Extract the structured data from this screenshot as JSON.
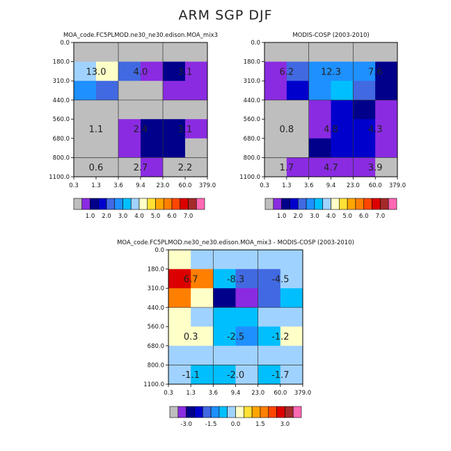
{
  "title": "ARM SGP DJF",
  "chart_data": [
    {
      "type": "heatmap",
      "title": "MOA_code.FC5PLMOD.ne30_ne30.edison.MOA_mix3",
      "xticks": [
        "0.3",
        "1.3",
        "3.6",
        "9.4",
        "23.0",
        "60.0",
        "379.0"
      ],
      "yticks": [
        "0.0",
        "180.0",
        "310.0",
        "440.0",
        "560.0",
        "680.0",
        "800.0",
        "1100.0"
      ],
      "colors": [
        [
          "#bebebe",
          "#bebebe",
          "#bebebe",
          "#bebebe",
          "#bebebe",
          "#bebebe"
        ],
        [
          "#a0d2ff",
          "#ffffc8",
          "#4169e1",
          "#8a2be2",
          "#00008b",
          "#8a2be2"
        ],
        [
          "#1e90ff",
          "#4169e1",
          "#bebebe",
          "#bebebe",
          "#8a2be2",
          "#8a2be2"
        ],
        [
          "#bebebe",
          "#bebebe",
          "#bebebe",
          "#bebebe",
          "#bebebe",
          "#bebebe"
        ],
        [
          "#bebebe",
          "#bebebe",
          "#8a2be2",
          "#00008b",
          "#00008b",
          "#8a2be2"
        ],
        [
          "#bebebe",
          "#bebebe",
          "#8a2be2",
          "#00008b",
          "#00008b",
          "#bebebe"
        ],
        [
          "#bebebe",
          "#bebebe",
          "#bebebe",
          "#8a2be2",
          "#bebebe",
          "#bebebe"
        ]
      ],
      "labels": [
        {
          "row": 1,
          "col": 0.5,
          "text": "13.0"
        },
        {
          "row": 1,
          "col": 2.5,
          "text": "4.0"
        },
        {
          "row": 1,
          "col": 4.5,
          "text": "3.1"
        },
        {
          "row": 4,
          "col": 0.5,
          "text": "1.1"
        },
        {
          "row": 4,
          "col": 2.5,
          "text": "2.4"
        },
        {
          "row": 4,
          "col": 4.5,
          "text": "3.1"
        },
        {
          "row": 6,
          "col": 0.5,
          "text": "0.6"
        },
        {
          "row": 6,
          "col": 2.5,
          "text": "2.7"
        },
        {
          "row": 6,
          "col": 4.5,
          "text": "2.2"
        }
      ],
      "legend": {
        "colors": [
          "#bebebe",
          "#8a2be2",
          "#00008b",
          "#0000cd",
          "#4169e1",
          "#1e90ff",
          "#00bfff",
          "#a0d2ff",
          "#ffffc8",
          "#ffe135",
          "#ffa500",
          "#ff7f00",
          "#ff4500",
          "#dc0000",
          "#a52a2a",
          "#ff69b4"
        ],
        "labels": [
          {
            "pos": 2,
            "text": "1.0"
          },
          {
            "pos": 4,
            "text": "2.0"
          },
          {
            "pos": 6,
            "text": "3.0"
          },
          {
            "pos": 8,
            "text": "4.0"
          },
          {
            "pos": 10,
            "text": "5.0"
          },
          {
            "pos": 12,
            "text": "6.0"
          },
          {
            "pos": 14,
            "text": "7.0"
          }
        ]
      }
    },
    {
      "type": "heatmap",
      "title": "MODIS-COSP (2003-2010)",
      "xticks": [
        "0.3",
        "1.3",
        "3.6",
        "9.4",
        "23.0",
        "60.0",
        "379.0"
      ],
      "yticks": [
        "0.0",
        "180.0",
        "310.0",
        "440.0",
        "560.0",
        "680.0",
        "800.0",
        "1100.0"
      ],
      "colors": [
        [
          "#bebebe",
          "#bebebe",
          "#bebebe",
          "#bebebe",
          "#bebebe",
          "#bebebe"
        ],
        [
          "#8a2be2",
          "#4169e1",
          "#1e90ff",
          "#1e90ff",
          "#1e90ff",
          "#00008b"
        ],
        [
          "#8a2be2",
          "#0000cd",
          "#1e90ff",
          "#00bfff",
          "#4169e1",
          "#00008b"
        ],
        [
          "#bebebe",
          "#bebebe",
          "#8a2be2",
          "#0000cd",
          "#00008b",
          "#8a2be2"
        ],
        [
          "#bebebe",
          "#bebebe",
          "#8a2be2",
          "#0000cd",
          "#0000cd",
          "#8a2be2"
        ],
        [
          "#bebebe",
          "#bebebe",
          "#00008b",
          "#0000cd",
          "#0000cd",
          "#8a2be2"
        ],
        [
          "#bebebe",
          "#8a2be2",
          "#8a2be2",
          "#8a2be2",
          "#8a2be2",
          "#bebebe"
        ]
      ],
      "labels": [
        {
          "row": 1,
          "col": 0.5,
          "text": "6.2"
        },
        {
          "row": 1,
          "col": 2.5,
          "text": "12.3"
        },
        {
          "row": 1,
          "col": 4.5,
          "text": "7.6"
        },
        {
          "row": 4,
          "col": 0.5,
          "text": "0.8"
        },
        {
          "row": 4,
          "col": 2.5,
          "text": "4.8"
        },
        {
          "row": 4,
          "col": 4.5,
          "text": "4.3"
        },
        {
          "row": 6,
          "col": 0.5,
          "text": "1.7"
        },
        {
          "row": 6,
          "col": 2.5,
          "text": "4.7"
        },
        {
          "row": 6,
          "col": 4.5,
          "text": "3.9"
        }
      ],
      "legend": {
        "colors": [
          "#bebebe",
          "#8a2be2",
          "#00008b",
          "#0000cd",
          "#4169e1",
          "#1e90ff",
          "#00bfff",
          "#a0d2ff",
          "#ffffc8",
          "#ffe135",
          "#ffa500",
          "#ff7f00",
          "#ff4500",
          "#dc0000",
          "#a52a2a",
          "#ff69b4"
        ],
        "labels": [
          {
            "pos": 2,
            "text": "1.0"
          },
          {
            "pos": 4,
            "text": "2.0"
          },
          {
            "pos": 6,
            "text": "3.0"
          },
          {
            "pos": 8,
            "text": "4.0"
          },
          {
            "pos": 10,
            "text": "5.0"
          },
          {
            "pos": 12,
            "text": "6.0"
          },
          {
            "pos": 14,
            "text": "7.0"
          }
        ]
      }
    },
    {
      "type": "heatmap",
      "title": "MOA_code.FC5PLMOD.ne30_ne30.edison.MOA_mix3 - MODIS-COSP (2003-2010)",
      "xticks": [
        "0.3",
        "1.3",
        "3.6",
        "9.4",
        "23.0",
        "60.0",
        "379.0"
      ],
      "yticks": [
        "0.0",
        "180.0",
        "310.0",
        "440.0",
        "560.0",
        "680.0",
        "800.0",
        "1100.0"
      ],
      "colors": [
        [
          "#ffffc8",
          "#a0d2ff",
          "#a0d2ff",
          "#a0d2ff",
          "#a0d2ff",
          "#a0d2ff"
        ],
        [
          "#dc0000",
          "#ff7f00",
          "#00bfff",
          "#4169e1",
          "#4169e1",
          "#a0d2ff"
        ],
        [
          "#ff7f00",
          "#ffffc8",
          "#00008b",
          "#8a2be2",
          "#4169e1",
          "#00bfff"
        ],
        [
          "#ffffc8",
          "#a0d2ff",
          "#00bfff",
          "#00bfff",
          "#a0d2ff",
          "#a0d2ff"
        ],
        [
          "#ffffc8",
          "#ffffc8",
          "#00bfff",
          "#1e90ff",
          "#00bfff",
          "#ffffc8"
        ],
        [
          "#a0d2ff",
          "#a0d2ff",
          "#a0d2ff",
          "#a0d2ff",
          "#a0d2ff",
          "#a0d2ff"
        ],
        [
          "#a0d2ff",
          "#00bfff",
          "#00bfff",
          "#a0d2ff",
          "#00bfff",
          "#a0d2ff"
        ]
      ],
      "labels": [
        {
          "row": 1,
          "col": 0.5,
          "text": "6.7"
        },
        {
          "row": 1,
          "col": 2.5,
          "text": "-8.3"
        },
        {
          "row": 1,
          "col": 4.5,
          "text": "-4.5"
        },
        {
          "row": 4,
          "col": 0.5,
          "text": "0.3"
        },
        {
          "row": 4,
          "col": 2.5,
          "text": "-2.5"
        },
        {
          "row": 4,
          "col": 4.5,
          "text": "-1.2"
        },
        {
          "row": 6,
          "col": 0.5,
          "text": "-1.1"
        },
        {
          "row": 6,
          "col": 2.5,
          "text": "-2.0"
        },
        {
          "row": 6,
          "col": 4.5,
          "text": "-1.7"
        }
      ],
      "legend": {
        "colors": [
          "#bebebe",
          "#8a2be2",
          "#00008b",
          "#0000cd",
          "#4169e1",
          "#1e90ff",
          "#00bfff",
          "#a0d2ff",
          "#ffffc8",
          "#ffe135",
          "#ffa500",
          "#ff7f00",
          "#ff4500",
          "#dc0000",
          "#a52a2a",
          "#ff69b4"
        ],
        "labels": [
          {
            "pos": 2,
            "text": "-3.0"
          },
          {
            "pos": 5,
            "text": "-1.5"
          },
          {
            "pos": 8,
            "text": "0.0"
          },
          {
            "pos": 11,
            "text": "1.5"
          },
          {
            "pos": 14,
            "text": "3.0"
          }
        ]
      }
    }
  ]
}
